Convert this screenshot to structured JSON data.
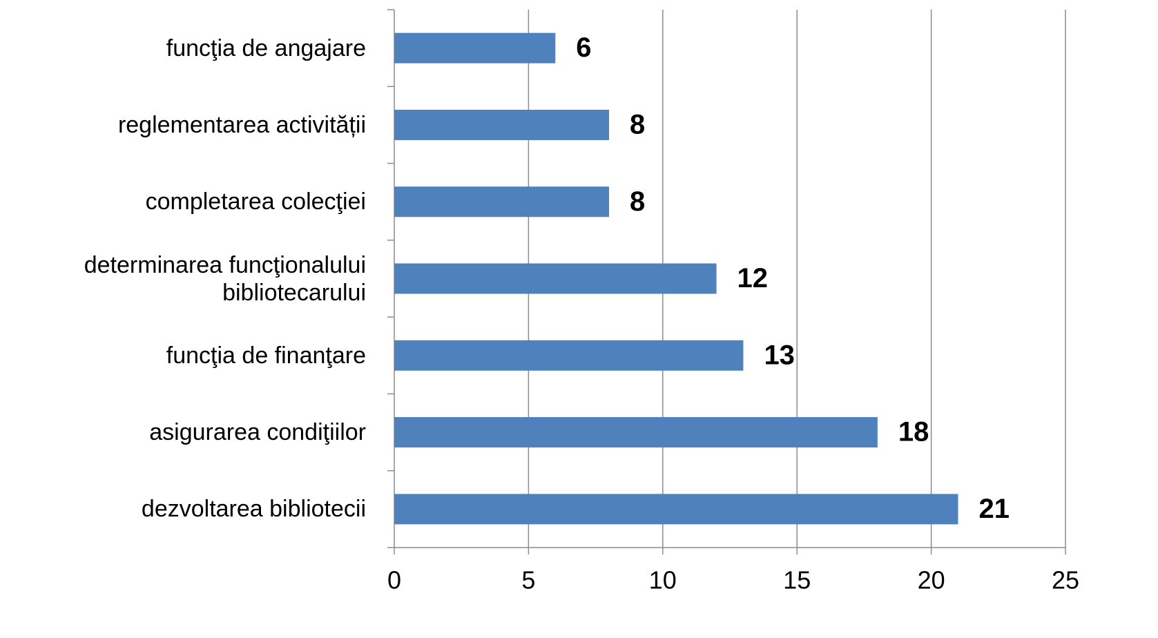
{
  "chart_data": {
    "type": "bar",
    "orientation": "horizontal",
    "categories": [
      "funcţia de angajare",
      "reglementarea activității",
      "completarea colecţiei",
      "determinarea funcţionalului bibliotecarului",
      "funcţia de finanţare",
      "asigurarea condiţiilor",
      "dezvoltarea bibliotecii"
    ],
    "values": [
      6,
      8,
      8,
      12,
      13,
      18,
      21
    ],
    "color": "#4f81bd",
    "xlim": [
      0,
      25
    ],
    "xticks": [
      0,
      5,
      10,
      15,
      20,
      25
    ],
    "grid": true
  }
}
